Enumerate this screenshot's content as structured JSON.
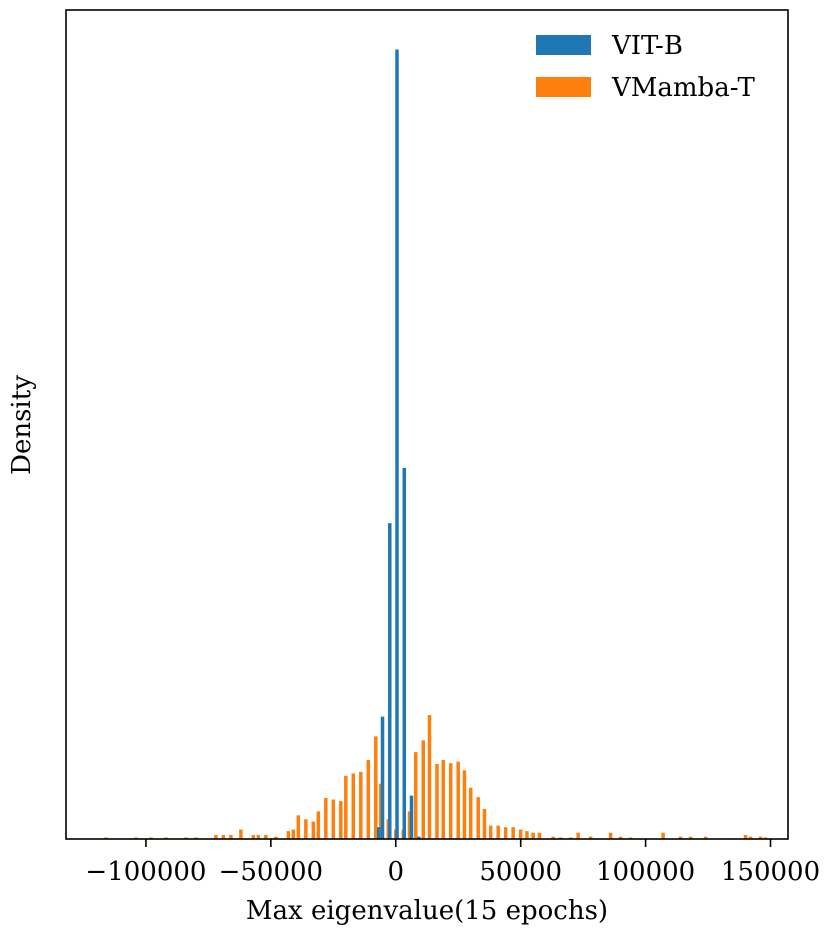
{
  "chart_data": {
    "type": "bar",
    "title": "",
    "xlabel": "Max eigenvalue(15 epochs)",
    "ylabel": "Density",
    "xlim": [
      -132000,
      157000
    ],
    "ylim": [
      0,
      1.05
    ],
    "xticks": [
      -100000,
      -50000,
      0,
      50000,
      100000,
      150000
    ],
    "xtick_labels": [
      "−100000",
      "−50000",
      "0",
      "50000",
      "100000",
      "150000"
    ],
    "grid": false,
    "legend_position": "top-right",
    "series": [
      {
        "name": "VIT-B",
        "color": "#1f77b4",
        "bin_width": 700,
        "bars": [
          [
            -6800,
            0.015
          ],
          [
            -5300,
            0.155
          ],
          [
            -2400,
            0.4
          ],
          [
            500,
            1.0
          ],
          [
            3400,
            0.47
          ],
          [
            6300,
            0.055
          ],
          [
            9200,
            0.003
          ]
        ]
      },
      {
        "name": "VMamba-T",
        "color": "#ff7f0e",
        "bin_width": 700,
        "bars": [
          [
            -116000,
            0.002
          ],
          [
            -104000,
            0.002
          ],
          [
            -98000,
            0.002
          ],
          [
            -92000,
            0.002
          ],
          [
            -84000,
            0.002
          ],
          [
            -80000,
            0.002
          ],
          [
            -72000,
            0.005
          ],
          [
            -69000,
            0.005
          ],
          [
            -66000,
            0.005
          ],
          [
            -62000,
            0.012
          ],
          [
            -57000,
            0.005
          ],
          [
            -55000,
            0.005
          ],
          [
            -52000,
            0.005
          ],
          [
            -48000,
            0.003
          ],
          [
            -43000,
            0.01
          ],
          [
            -41000,
            0.012
          ],
          [
            -39000,
            0.03
          ],
          [
            -36000,
            0.025
          ],
          [
            -33000,
            0.022
          ],
          [
            -31000,
            0.035
          ],
          [
            -28000,
            0.052
          ],
          [
            -25000,
            0.05
          ],
          [
            -22000,
            0.048
          ],
          [
            -20000,
            0.08
          ],
          [
            -17000,
            0.083
          ],
          [
            -14000,
            0.085
          ],
          [
            -11000,
            0.1
          ],
          [
            -8000,
            0.13
          ],
          [
            -6000,
            0.07
          ],
          [
            -3000,
            0.025
          ],
          [
            0,
            0.012
          ],
          [
            3000,
            0.012
          ],
          [
            5500,
            0.035
          ],
          [
            8000,
            0.11
          ],
          [
            11000,
            0.125
          ],
          [
            13500,
            0.157
          ],
          [
            16500,
            0.095
          ],
          [
            19000,
            0.1
          ],
          [
            22000,
            0.096
          ],
          [
            25000,
            0.098
          ],
          [
            27500,
            0.087
          ],
          [
            30000,
            0.065
          ],
          [
            33000,
            0.053
          ],
          [
            35500,
            0.038
          ],
          [
            38000,
            0.017
          ],
          [
            41000,
            0.017
          ],
          [
            44000,
            0.015
          ],
          [
            47000,
            0.015
          ],
          [
            50000,
            0.012
          ],
          [
            52500,
            0.01
          ],
          [
            55000,
            0.008
          ],
          [
            57500,
            0.008
          ],
          [
            63000,
            0.003
          ],
          [
            66000,
            0.002
          ],
          [
            70000,
            0.002
          ],
          [
            73000,
            0.008
          ],
          [
            78000,
            0.003
          ],
          [
            86000,
            0.008
          ],
          [
            90000,
            0.003
          ],
          [
            94000,
            0.002
          ],
          [
            107000,
            0.008
          ],
          [
            114000,
            0.003
          ],
          [
            118000,
            0.003
          ],
          [
            124000,
            0.003
          ],
          [
            140000,
            0.005
          ],
          [
            142000,
            0.003
          ],
          [
            146000,
            0.003
          ],
          [
            148000,
            0.002
          ]
        ]
      }
    ]
  }
}
